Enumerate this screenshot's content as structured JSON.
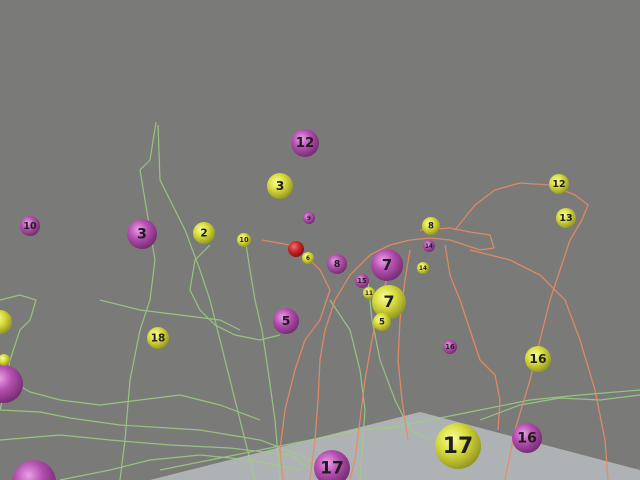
{
  "colors": {
    "background": "#7a7b78",
    "magenta_ball": "#b54fb0",
    "yellow_ball": "#d8dc3c",
    "red_ball": "#c82424",
    "green_trail": "#9ecf82",
    "orange_trail": "#e88a64",
    "floor": "#b9bcbe"
  },
  "balls": [
    {
      "id": "12",
      "label": "12",
      "color": "magenta"
    },
    {
      "id": "3a",
      "label": "3",
      "color": "yellow"
    },
    {
      "id": "10",
      "label": "10",
      "color": "magenta"
    },
    {
      "id": "3b",
      "label": "3",
      "color": "magenta"
    },
    {
      "id": "2",
      "label": "2",
      "color": "yellow"
    },
    {
      "id": "10b",
      "label": "10",
      "color": "yellow"
    },
    {
      "id": "9",
      "label": "9",
      "color": "magenta"
    },
    {
      "id": "red",
      "label": "",
      "color": "red"
    },
    {
      "id": "6a",
      "label": "6",
      "color": "yellow"
    },
    {
      "id": "8a",
      "label": "8",
      "color": "magenta"
    },
    {
      "id": "7a",
      "label": "7",
      "color": "magenta"
    },
    {
      "id": "8b",
      "label": "8",
      "color": "yellow"
    },
    {
      "id": "14a",
      "label": "14",
      "color": "magenta"
    },
    {
      "id": "14b",
      "label": "14",
      "color": "yellow"
    },
    {
      "id": "12b",
      "label": "12",
      "color": "yellow"
    },
    {
      "id": "13",
      "label": "13",
      "color": "yellow"
    },
    {
      "id": "15",
      "label": "15",
      "color": "magenta"
    },
    {
      "id": "11",
      "label": "11",
      "color": "yellow"
    },
    {
      "id": "7b",
      "label": "7",
      "color": "yellow"
    },
    {
      "id": "5a",
      "label": "5",
      "color": "yellow"
    },
    {
      "id": "5b",
      "label": "5",
      "color": "magenta"
    },
    {
      "id": "18",
      "label": "18",
      "color": "yellow"
    },
    {
      "id": "16a",
      "label": "16",
      "color": "magenta"
    },
    {
      "id": "16b",
      "label": "16",
      "color": "yellow"
    },
    {
      "id": "16c",
      "label": "16",
      "color": "magenta"
    },
    {
      "id": "17a",
      "label": "17",
      "color": "yellow"
    },
    {
      "id": "17b",
      "label": "17",
      "color": "magenta"
    },
    {
      "id": "edge1",
      "label": "",
      "color": "yellow"
    },
    {
      "id": "edge2",
      "label": "",
      "color": "magenta"
    },
    {
      "id": "edge3",
      "label": "",
      "color": "magenta"
    },
    {
      "id": "edge4",
      "label": "",
      "color": "yellow"
    }
  ]
}
